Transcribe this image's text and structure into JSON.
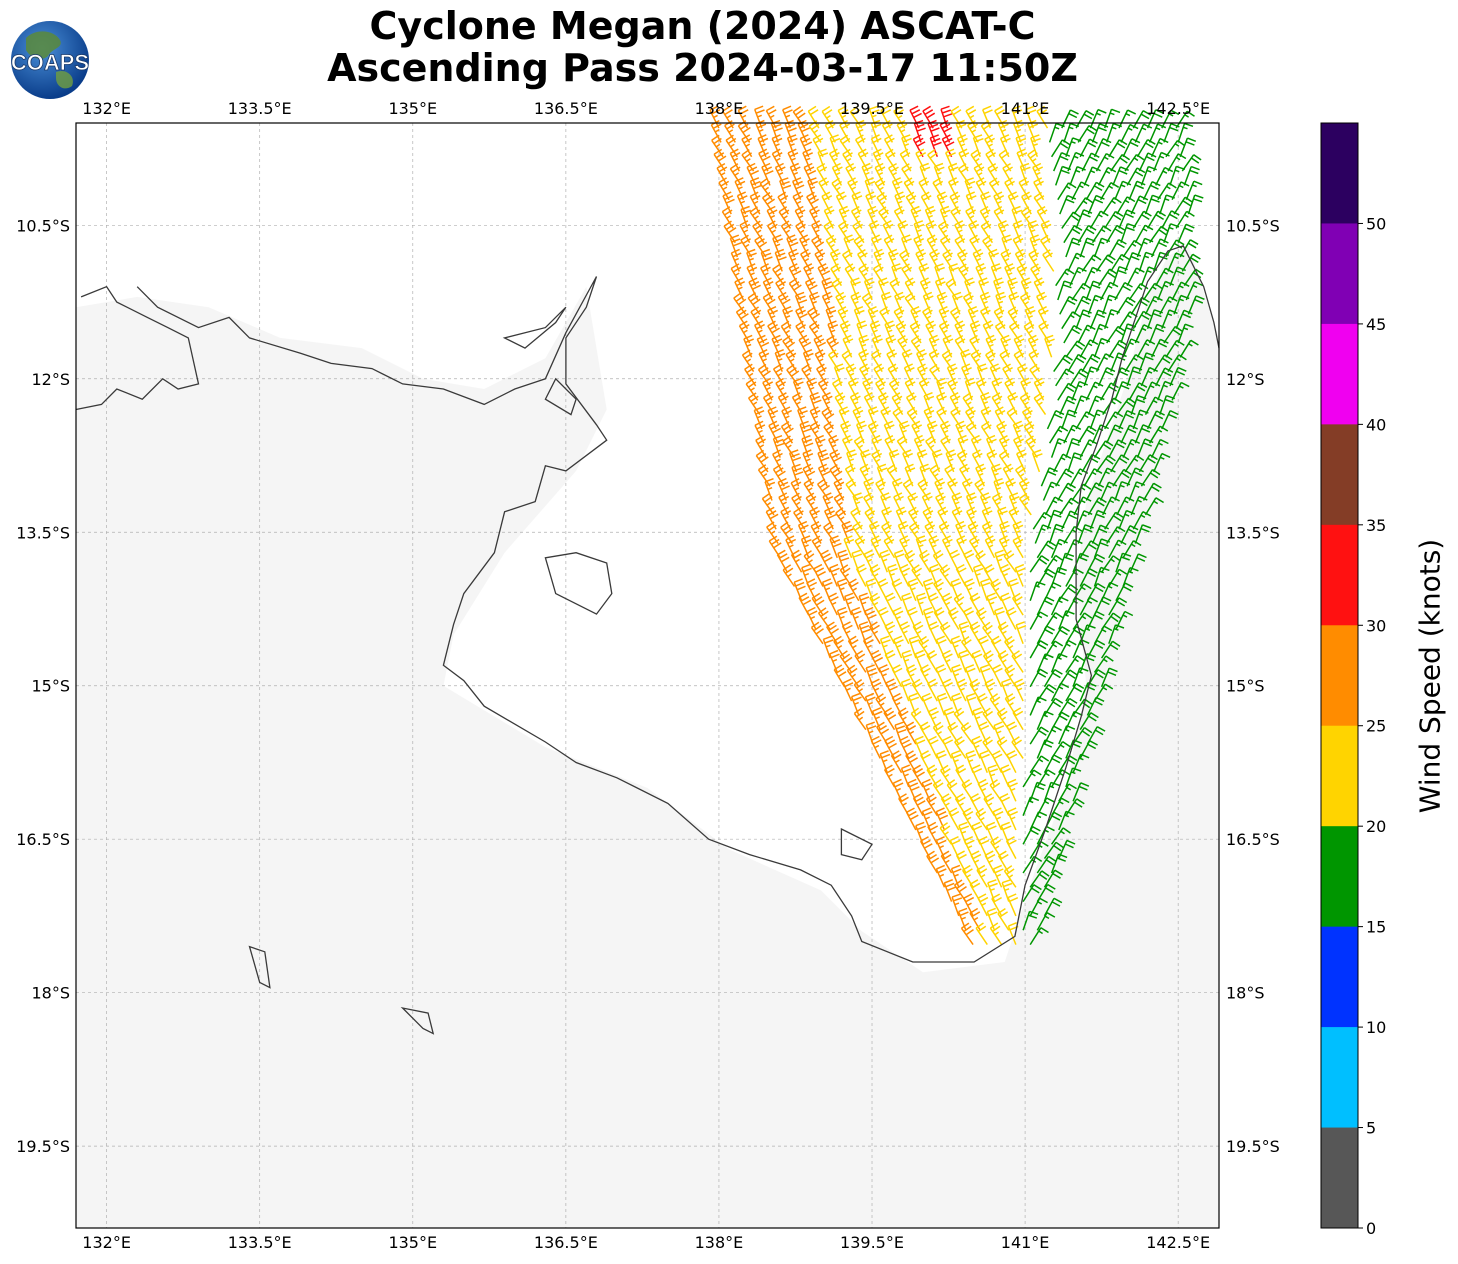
{
  "title": {
    "line1": "Cyclone Megan (2024) ASCAT-C",
    "line2": "Ascending Pass 2024-03-17 11:50Z"
  },
  "logo": {
    "text": "COAPS"
  },
  "map": {
    "lon_ticks": [
      "132°E",
      "133.5°E",
      "135°E",
      "136.5°E",
      "138°E",
      "139.5°E",
      "141°E",
      "142.5°E"
    ],
    "lon_values": [
      132,
      133.5,
      135,
      136.5,
      138,
      139.5,
      141,
      142.5
    ],
    "lat_ticks": [
      "10.5°S",
      "12°S",
      "13.5°S",
      "15°S",
      "16.5°S",
      "18°S",
      "19.5°S"
    ],
    "lat_values": [
      -10.5,
      -12,
      -13.5,
      -15,
      -16.5,
      -18,
      -19.5
    ],
    "lon_range": [
      131.7,
      142.9
    ],
    "lat_range": [
      -9.5,
      -20.3
    ]
  },
  "colorbar": {
    "label": "Wind Speed (knots)",
    "ticks": [
      "0",
      "5",
      "10",
      "15",
      "20",
      "25",
      "30",
      "35",
      "40",
      "45",
      "50"
    ],
    "colors": [
      "#575757",
      "#00bfff",
      "#0033ff",
      "#009600",
      "#ffd400",
      "#ff8c00",
      "#ff1111",
      "#843d26",
      "#f000f0",
      "#8000b4",
      "#2c0060"
    ]
  },
  "colors": {
    "coastline": "#3a3a3a",
    "grid": "#b0b0b0",
    "land_shade": "#ececec"
  }
}
